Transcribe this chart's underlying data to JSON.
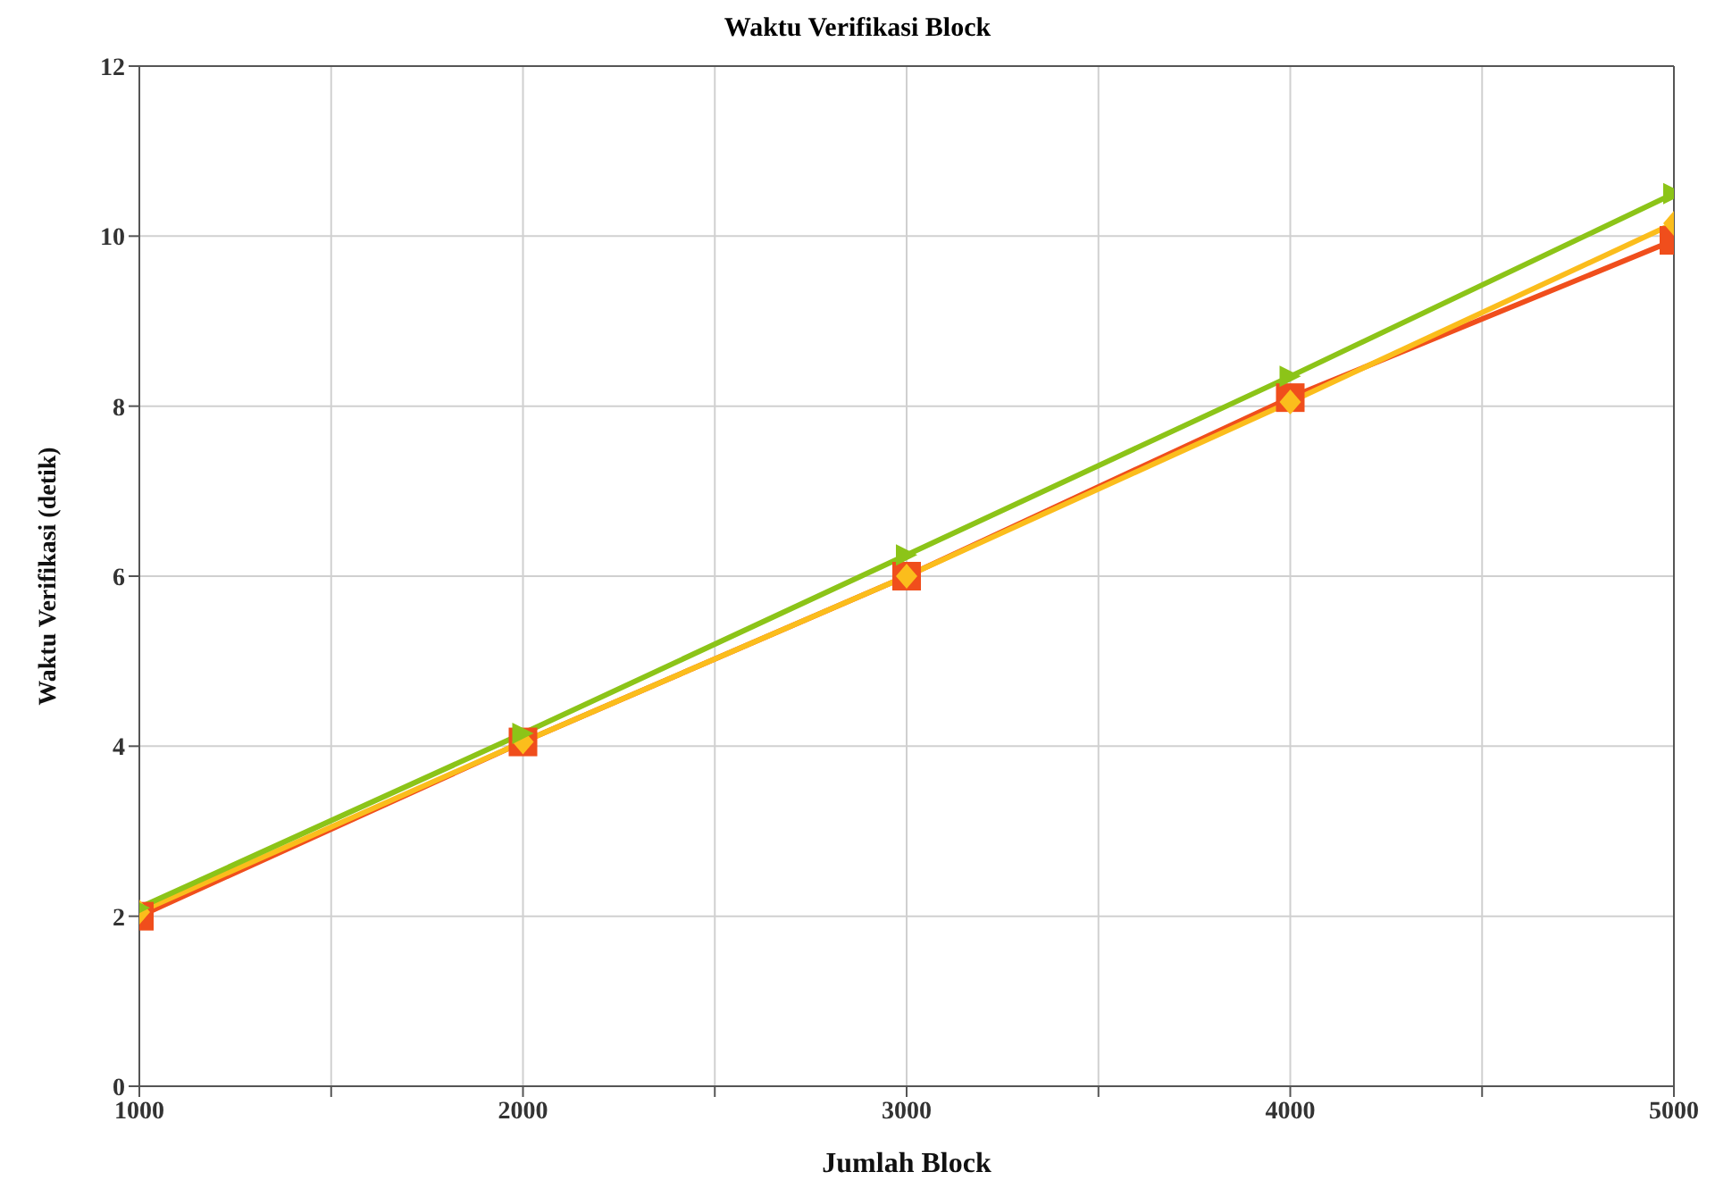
{
  "chart_data": {
    "type": "line",
    "title": "Waktu Verifikasi Block",
    "xlabel": "Jumlah Block",
    "ylabel": "Waktu Verifikasi (detik)",
    "x": [
      1000,
      2000,
      3000,
      4000,
      5000
    ],
    "series": [
      {
        "color": "#f04e1c",
        "marker": "square",
        "values": [
          2.0,
          4.05,
          6.0,
          8.1,
          9.95
        ]
      },
      {
        "color": "#fbbd1c",
        "marker": "diamond",
        "values": [
          2.05,
          4.05,
          6.0,
          8.05,
          10.15
        ]
      },
      {
        "color": "#8cc418",
        "marker": "triangle",
        "values": [
          2.1,
          4.15,
          6.25,
          8.35,
          10.5
        ]
      }
    ],
    "xlim": [
      1000,
      5000
    ],
    "xticks": [
      1000,
      {
        "value": 1500,
        "label": null
      },
      2000,
      {
        "value": 2500,
        "label": null
      },
      3000,
      {
        "value": 3500,
        "label": null
      },
      4000,
      {
        "value": 4500,
        "label": null
      },
      5000
    ],
    "ylim": [
      0,
      12
    ],
    "yticks": [
      0,
      2,
      4,
      6,
      8,
      10,
      12
    ],
    "grid": true,
    "line_style": "solid"
  }
}
